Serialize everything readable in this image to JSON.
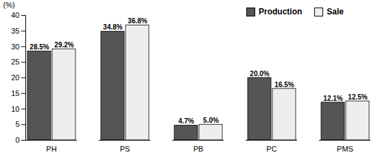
{
  "chart_data": {
    "type": "bar",
    "categories": [
      "PH",
      "PS",
      "PB",
      "PC",
      "PMS"
    ],
    "series": [
      {
        "name": "Production",
        "color": "#555555",
        "values": [
          28.5,
          34.8,
          4.7,
          20.0,
          12.1
        ],
        "value_labels": [
          "28.5%",
          "34.8%",
          "4.7%",
          "20.0%",
          "12.1%"
        ]
      },
      {
        "name": "Sale",
        "color": "#eeeeee",
        "values": [
          29.2,
          36.8,
          5.0,
          16.5,
          12.5
        ],
        "value_labels": [
          "29.2%",
          "36.8%",
          "5.0%",
          "16.5%",
          "12.5%"
        ]
      }
    ],
    "ylabel": "(%)",
    "ylim": [
      0,
      40
    ],
    "yticks": [
      0,
      5,
      10,
      15,
      20,
      25,
      30,
      35,
      40
    ],
    "data_labels": true,
    "legend": "top-right",
    "grid": false
  }
}
